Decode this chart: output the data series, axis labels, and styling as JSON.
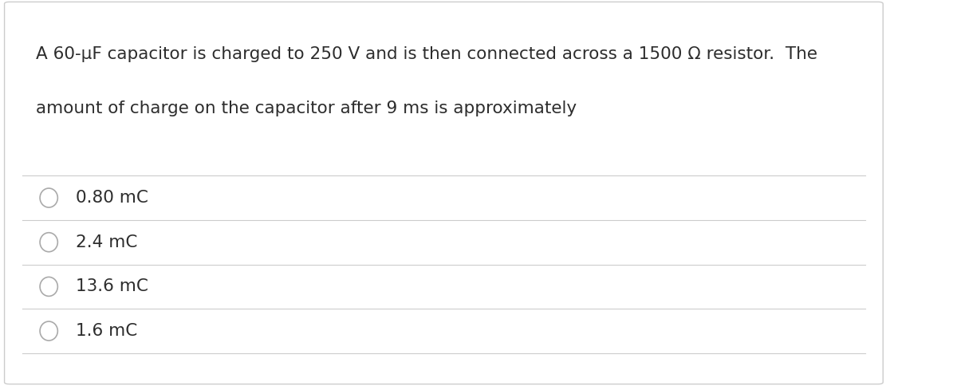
{
  "background_color": "#ffffff",
  "border_color": "#cccccc",
  "question_line1": "A 60-μF capacitor is charged to 250 V and is then connected across a 1500 Ω resistor.  The",
  "question_line2": "amount of charge on the capacitor after 9 ms is approximately",
  "options": [
    "0.80 mC",
    "2.4 mC",
    "13.6 mC",
    "1.6 mC"
  ],
  "text_color": "#2d2d2d",
  "divider_color": "#cccccc",
  "circle_color": "#aaaaaa",
  "question_fontsize": 15.5,
  "option_fontsize": 15.5,
  "fig_width": 12.0,
  "fig_height": 4.84
}
